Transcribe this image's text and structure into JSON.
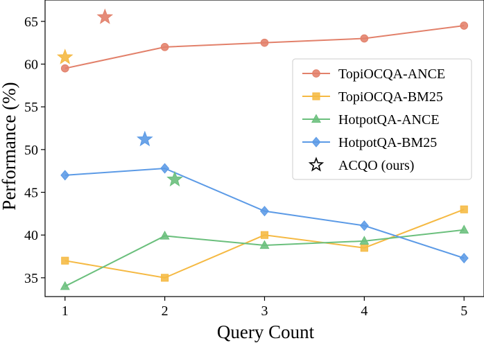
{
  "chart_data": {
    "type": "line",
    "xlabel": "Query Count",
    "ylabel": "Performance (%)",
    "xlim": [
      0.8,
      5.2
    ],
    "ylim": [
      32.8,
      67.5
    ],
    "xticks": [
      1,
      2,
      3,
      4,
      5
    ],
    "yticks": [
      35,
      40,
      45,
      50,
      55,
      60,
      65
    ],
    "x": [
      1,
      2,
      3,
      4,
      5
    ],
    "series": [
      {
        "name": "TopiOCQA-ANCE",
        "color": "#e2806a",
        "marker": "circle",
        "values": [
          59.5,
          62.0,
          62.5,
          63.0,
          64.5
        ],
        "acqo": {
          "x": 1.4,
          "y": 65.5
        }
      },
      {
        "name": "TopiOCQA-BM25",
        "color": "#f5b942",
        "marker": "square",
        "values": [
          37.0,
          35.0,
          40.0,
          38.5,
          43.0
        ],
        "acqo": {
          "x": 1.0,
          "y": 60.8
        }
      },
      {
        "name": "HotpotQA-ANCE",
        "color": "#6abf7c",
        "marker": "triangle",
        "values": [
          34.0,
          39.9,
          38.8,
          39.3,
          40.6
        ],
        "acqo": {
          "x": 2.1,
          "y": 46.5
        }
      },
      {
        "name": "HotpotQA-BM25",
        "color": "#5b9ae6",
        "marker": "diamond",
        "values": [
          47.0,
          47.8,
          42.8,
          41.1,
          37.3
        ],
        "acqo": {
          "x": 1.8,
          "y": 51.2
        }
      }
    ],
    "legend": {
      "position": "right",
      "entries": [
        "TopiOCQA-ANCE",
        "TopiOCQA-BM25",
        "HotpotQA-ANCE",
        "HotpotQA-BM25",
        "ACQO (ours)"
      ]
    }
  }
}
